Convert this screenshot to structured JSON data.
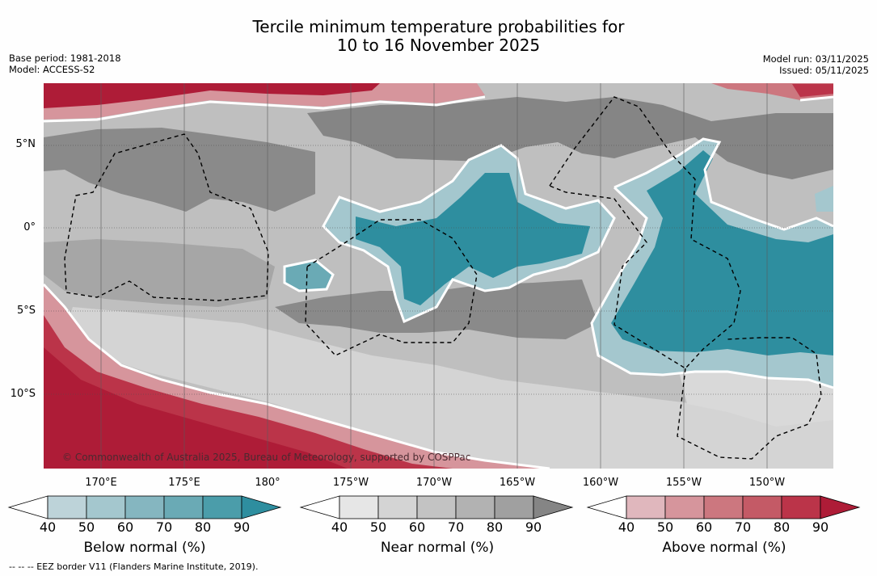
{
  "title": {
    "line1": "Tercile minimum temperature probabilities for",
    "line2": "10 to 16 November 2025"
  },
  "meta": {
    "base_period": "Base period: 1981-2018",
    "model": "Model: ACCESS-S2",
    "model_run": "Model run: 03/11/2025",
    "issued": "Issued: 05/11/2025"
  },
  "axes": {
    "lat_labels": [
      "5°N",
      "0°",
      "5°S",
      "10°S"
    ],
    "lon_labels": [
      "170°E",
      "175°E",
      "180°",
      "175°W",
      "170°W",
      "165°W",
      "160°W",
      "155°W",
      "150°W"
    ]
  },
  "credit": "© Commonwealth of Australia 2025, Bureau of Meteorology, supported by COSPPac",
  "colorbars": [
    {
      "title": "Below normal (%)",
      "ticks": [
        "40",
        "50",
        "60",
        "70",
        "80",
        "90"
      ],
      "colors": [
        "#bdd3d9",
        "#a4c7ce",
        "#85b6c0",
        "#6aaab5",
        "#4b9daa",
        "#2e8e9f"
      ]
    },
    {
      "title": "Near normal (%)",
      "ticks": [
        "40",
        "50",
        "60",
        "70",
        "80",
        "90"
      ],
      "colors": [
        "#e6e6e6",
        "#d4d4d4",
        "#c3c3c3",
        "#b2b2b2",
        "#a0a0a0",
        "#858585"
      ]
    },
    {
      "title": "Above normal (%)",
      "ticks": [
        "40",
        "50",
        "60",
        "70",
        "80",
        "90"
      ],
      "colors": [
        "#e0b7bd",
        "#d6959c",
        "#cc777f",
        "#c45a66",
        "#bb3449",
        "#ae1c37"
      ]
    }
  ],
  "footnote": "--  --  -- EEZ border V11 (Flanders Marine Institute, 2019).",
  "colors": {
    "below_strong": "#2e8e9f",
    "below_mid": "#6aaab5",
    "below_light": "#bdd3d9",
    "near_strong": "#858585",
    "near_mid": "#a0a0a0",
    "near_light": "#d4d4d4",
    "above_strong": "#ae1c37",
    "above_mid": "#c45a66",
    "above_light": "#e0b7bd"
  }
}
